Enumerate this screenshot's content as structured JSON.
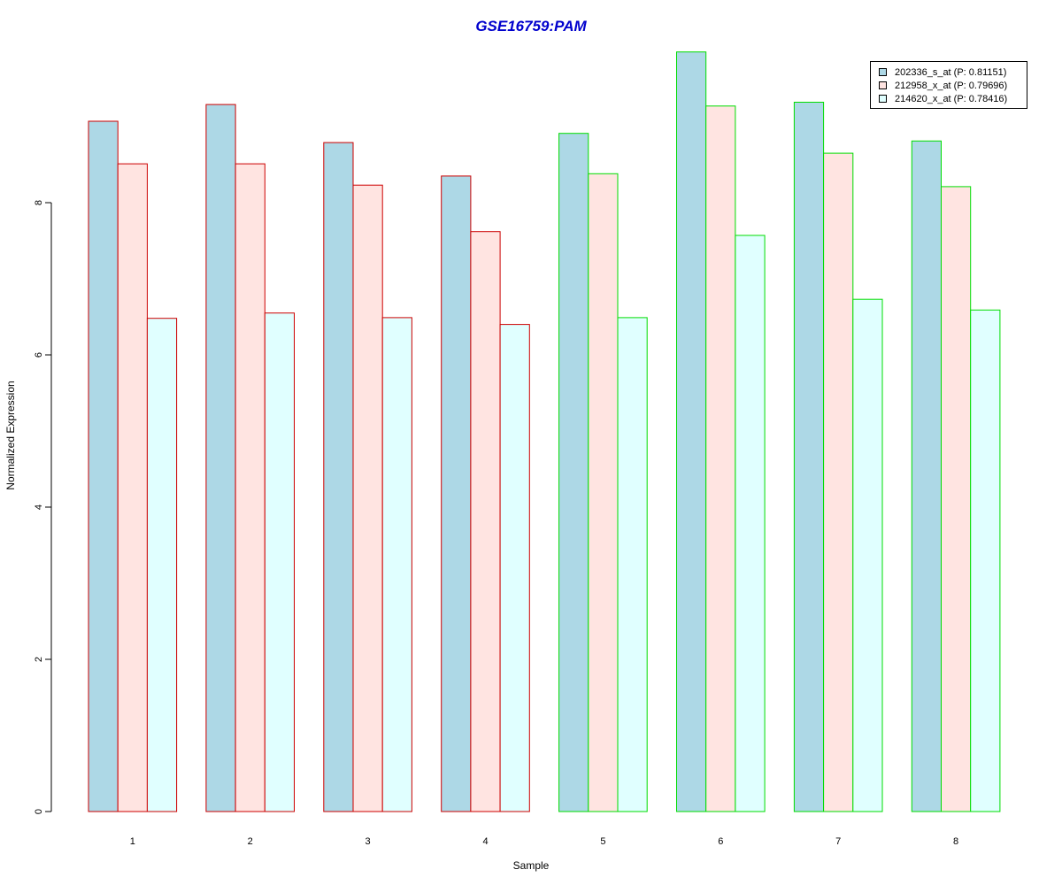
{
  "chart_data": {
    "type": "bar",
    "title": "GSE16759:PAM",
    "xlabel": "Sample",
    "ylabel": "Normalized Expression",
    "categories": [
      "1",
      "2",
      "3",
      "4",
      "5",
      "6",
      "7",
      "8"
    ],
    "yticks": [
      "0",
      "2",
      "4",
      "6",
      "8"
    ],
    "ylim": [
      0,
      10
    ],
    "series": [
      {
        "name": "202336_s_at (P: 0.81151)",
        "color": "#add8e6",
        "values": [
          9.07,
          9.29,
          8.79,
          8.35,
          8.91,
          9.98,
          9.32,
          8.81
        ]
      },
      {
        "name": "212958_x_at (P: 0.79696)",
        "color": "#ffe4e1",
        "values": [
          8.51,
          8.51,
          8.23,
          7.62,
          8.38,
          9.27,
          8.65,
          8.21
        ]
      },
      {
        "name": "214620_x_at (P: 0.78416)",
        "color": "#e0ffff",
        "values": [
          6.48,
          6.55,
          6.49,
          6.4,
          6.49,
          7.57,
          6.73,
          6.59
        ]
      }
    ],
    "group_border_colors": [
      "#cc0000",
      "#cc0000",
      "#cc0000",
      "#cc0000",
      "#00dd00",
      "#00dd00",
      "#00dd00",
      "#00dd00"
    ],
    "legend_position": "top-right",
    "grid": false
  }
}
